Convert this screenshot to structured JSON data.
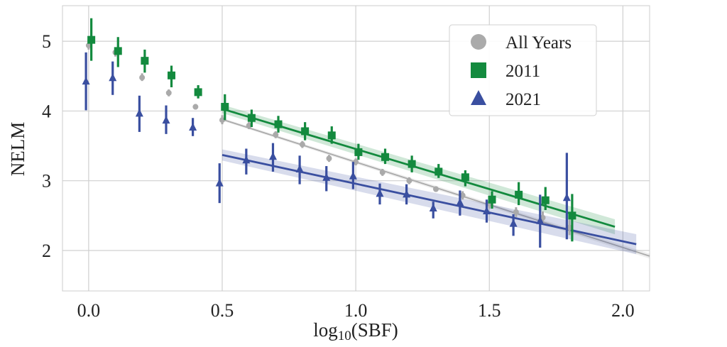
{
  "chart_data": {
    "type": "scatter",
    "xlabel": "log10(SBF)",
    "ylabel": "NELM",
    "xlim": [
      -0.098,
      2.1
    ],
    "ylim": [
      1.42,
      5.51
    ],
    "xticks": [
      "0.0",
      "0.5",
      "1.0",
      "1.5",
      "2.0"
    ],
    "xtick_values": [
      0,
      0.5,
      1.0,
      1.5,
      2.0
    ],
    "yticks": [
      "2",
      "3",
      "4",
      "5"
    ],
    "ytick_values": [
      2,
      3,
      4,
      5
    ],
    "grid": true,
    "legend_position": "top-right",
    "x": [
      0.0,
      0.1,
      0.2,
      0.3,
      0.4,
      0.5,
      0.6,
      0.7,
      0.8,
      0.9,
      1.0,
      1.1,
      1.2,
      1.3,
      1.4,
      1.5,
      1.6,
      1.7,
      1.8
    ],
    "series": [
      {
        "name": "All Years",
        "marker": "circle",
        "color": "#aaaaaa",
        "values": [
          4.94,
          4.84,
          4.48,
          4.26,
          4.06,
          3.87,
          3.79,
          3.66,
          3.52,
          3.32,
          3.27,
          3.12,
          3.0,
          2.88,
          2.79,
          2.67,
          2.55,
          2.47,
          2.33
        ],
        "err_low": [
          4.88,
          4.78,
          4.43,
          4.21,
          4.02,
          3.81,
          3.74,
          3.61,
          3.47,
          3.27,
          3.22,
          3.07,
          2.95,
          2.84,
          2.73,
          2.6,
          2.48,
          2.38,
          2.22
        ],
        "err_high": [
          5.03,
          4.9,
          4.54,
          4.31,
          4.1,
          3.94,
          3.84,
          3.71,
          3.57,
          3.37,
          3.32,
          3.17,
          3.05,
          2.92,
          2.85,
          2.74,
          2.62,
          2.56,
          2.44
        ],
        "fit": {
          "x": [
            0.5,
            2.1
          ],
          "y": [
            3.88,
            1.92
          ],
          "band": 0.02
        }
      },
      {
        "name": "2011",
        "marker": "square",
        "color": "#138a3e",
        "values": [
          5.02,
          4.86,
          4.72,
          4.51,
          4.27,
          4.06,
          3.9,
          3.81,
          3.71,
          3.65,
          3.41,
          3.34,
          3.24,
          3.13,
          3.05,
          2.73,
          2.8,
          2.72,
          2.5
        ],
        "err_low": [
          4.72,
          4.63,
          4.55,
          4.34,
          4.18,
          3.87,
          3.77,
          3.69,
          3.58,
          3.53,
          3.3,
          3.24,
          3.12,
          3.04,
          2.92,
          2.6,
          2.65,
          2.58,
          2.13
        ],
        "err_high": [
          5.33,
          5.06,
          4.88,
          4.65,
          4.37,
          4.24,
          4.02,
          3.93,
          3.84,
          3.78,
          3.53,
          3.46,
          3.36,
          3.24,
          3.15,
          2.85,
          2.98,
          2.91,
          2.81
        ],
        "fit": {
          "x": [
            0.5,
            1.97
          ],
          "y": [
            4.03,
            2.34
          ],
          "band": 0.06
        }
      },
      {
        "name": "2021",
        "marker": "triangle",
        "color": "#3a4fa0",
        "values": [
          4.42,
          4.47,
          3.96,
          3.86,
          3.76,
          2.96,
          3.29,
          3.34,
          3.16,
          3.04,
          3.06,
          2.81,
          2.8,
          2.6,
          2.68,
          2.56,
          2.38,
          2.42,
          2.75
        ],
        "err_low": [
          4.01,
          4.23,
          3.7,
          3.67,
          3.64,
          2.68,
          3.09,
          3.13,
          2.95,
          2.85,
          2.88,
          2.66,
          2.66,
          2.46,
          2.5,
          2.4,
          2.21,
          2.04,
          2.16
        ],
        "err_high": [
          4.84,
          4.71,
          4.22,
          4.08,
          3.9,
          3.25,
          3.46,
          3.54,
          3.36,
          3.21,
          3.27,
          2.96,
          2.95,
          2.7,
          2.86,
          2.73,
          2.52,
          2.8,
          3.4
        ],
        "fit": {
          "x": [
            0.5,
            2.05
          ],
          "y": [
            3.37,
            2.09
          ],
          "band": 0.08
        }
      }
    ]
  }
}
